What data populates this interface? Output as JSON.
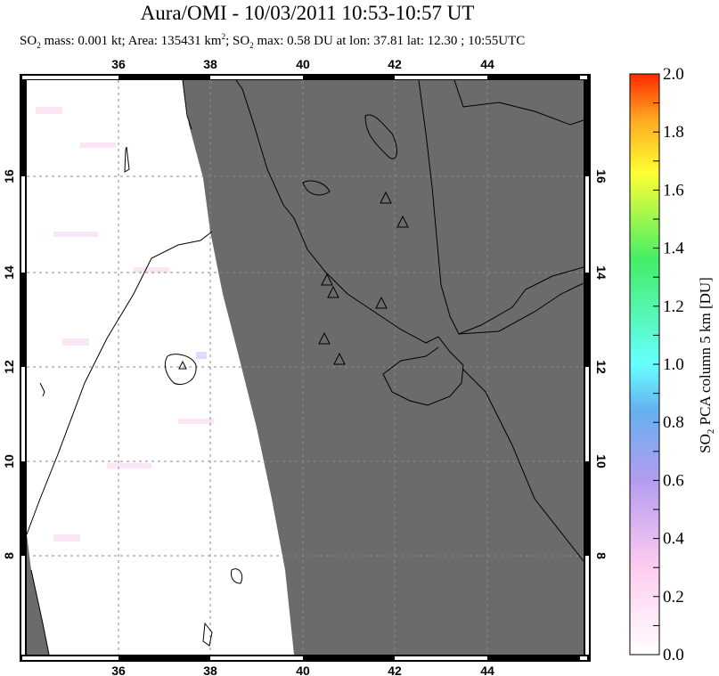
{
  "header": {
    "title": "Aura/OMI - 10/03/2011 10:53-10:57 UT",
    "so2_mass": "SO",
    "subtitle_parts": [
      "SO",
      "2",
      " mass: 0.001 kt; Area: 135431 km",
      "2",
      "; SO",
      "2",
      " max: 0.58 DU at lon: 37.81 lat: 12.30 ; 10:55UTC"
    ]
  },
  "map": {
    "lon_ticks": [
      "36",
      "38",
      "40",
      "42",
      "44"
    ],
    "lat_ticks": [
      "16",
      "14",
      "12",
      "10",
      "8"
    ],
    "land_color": "#6b6b6b",
    "swath_color": "#ffffff",
    "volcano_icon": "triangle-outline"
  },
  "colorbar": {
    "label_parts": [
      "SO",
      "2",
      " PCA column 5 km [DU]"
    ],
    "ticks": [
      "2.0",
      "1.8",
      "1.6",
      "1.4",
      "1.2",
      "1.0",
      "0.8",
      "0.6",
      "0.4",
      "0.2",
      "0.0"
    ],
    "range": [
      0,
      2.0
    ],
    "colors": [
      "#ffffff",
      "#ffccf0",
      "#b39cf0",
      "#66b0f0",
      "#66ffff",
      "#44ee66",
      "#ffff33",
      "#ffaa22",
      "#ff2a00"
    ]
  }
}
